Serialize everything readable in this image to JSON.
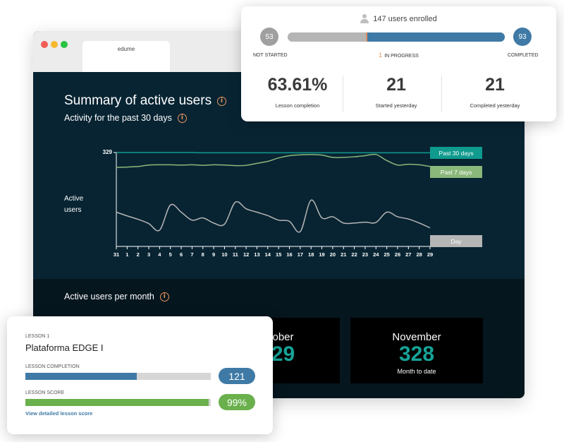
{
  "browser": {
    "tab_title": "edume"
  },
  "summary": {
    "title": "Summary of active users",
    "subtitle": "Activity for the past 30 days",
    "y_label_line1": "Active",
    "y_label_line2": "users",
    "y_max_label": "329",
    "legend": {
      "past30": "Past 30 days",
      "past7": "Past 7 days",
      "day": "Day"
    },
    "colors": {
      "past30": "#0f9b8e",
      "past7": "#8ab77a",
      "day": "#b5b5b5"
    }
  },
  "chart_data": {
    "type": "line",
    "x": [
      "31",
      "1",
      "2",
      "3",
      "4",
      "5",
      "6",
      "7",
      "8",
      "9",
      "10",
      "11",
      "12",
      "13",
      "14",
      "15",
      "16",
      "17",
      "18",
      "19",
      "20",
      "21",
      "22",
      "23",
      "24",
      "25",
      "26",
      "27",
      "28",
      "29"
    ],
    "ylabel": "Active users",
    "ylim": [
      0,
      329
    ],
    "series": [
      {
        "name": "Past 30 days",
        "values": [
          329,
          329,
          329,
          329,
          329,
          329,
          329,
          329,
          328,
          328,
          328,
          328,
          328,
          328,
          328,
          328,
          328,
          328,
          328,
          328,
          328,
          328,
          328,
          328,
          328,
          328,
          328,
          328,
          328,
          328
        ]
      },
      {
        "name": "Past 7 days",
        "values": [
          277,
          278,
          280,
          285,
          286,
          286,
          285,
          286,
          284,
          286,
          285,
          283,
          284,
          291,
          298,
          310,
          318,
          321,
          322,
          320,
          312,
          312,
          314,
          318,
          322,
          301,
          285,
          288,
          286,
          280
        ]
      },
      {
        "name": "Day",
        "values": [
          120,
          107,
          95,
          80,
          57,
          145,
          120,
          92,
          100,
          82,
          78,
          155,
          132,
          120,
          108,
          92,
          88,
          52,
          162,
          100,
          104,
          82,
          82,
          85,
          84,
          120,
          104,
          96,
          82,
          65
        ]
      }
    ]
  },
  "monthly": {
    "title": "Active users per month",
    "cards": [
      {
        "name": "ober",
        "value": "29",
        "note": ""
      },
      {
        "name": "November",
        "value": "328",
        "note": "Month to date"
      }
    ]
  },
  "enrollment": {
    "enrolled_text": "147 users enrolled",
    "not_started": {
      "count": "53",
      "label": "NOT STARTED",
      "value": 53
    },
    "in_progress": {
      "count": "1",
      "label": "IN PROGRESS",
      "value": 1
    },
    "completed": {
      "count": "93",
      "label": "COMPLETED",
      "value": 93
    },
    "total": 147,
    "stats": [
      {
        "value": "63.61%",
        "label": "Lesson completion"
      },
      {
        "value": "21",
        "label": "Started yesterday"
      },
      {
        "value": "21",
        "label": "Completed yesterday"
      }
    ]
  },
  "lesson": {
    "kicker": "LESSON 1",
    "title": "Plataforma EDGE I",
    "completion_label": "LESSON COMPLETION",
    "completion_value": "121",
    "completion_fraction": 0.6,
    "score_label": "LESSON SCORE",
    "score_value": "99%",
    "score_fraction": 0.99,
    "link_text": "View detailed lesson score"
  }
}
